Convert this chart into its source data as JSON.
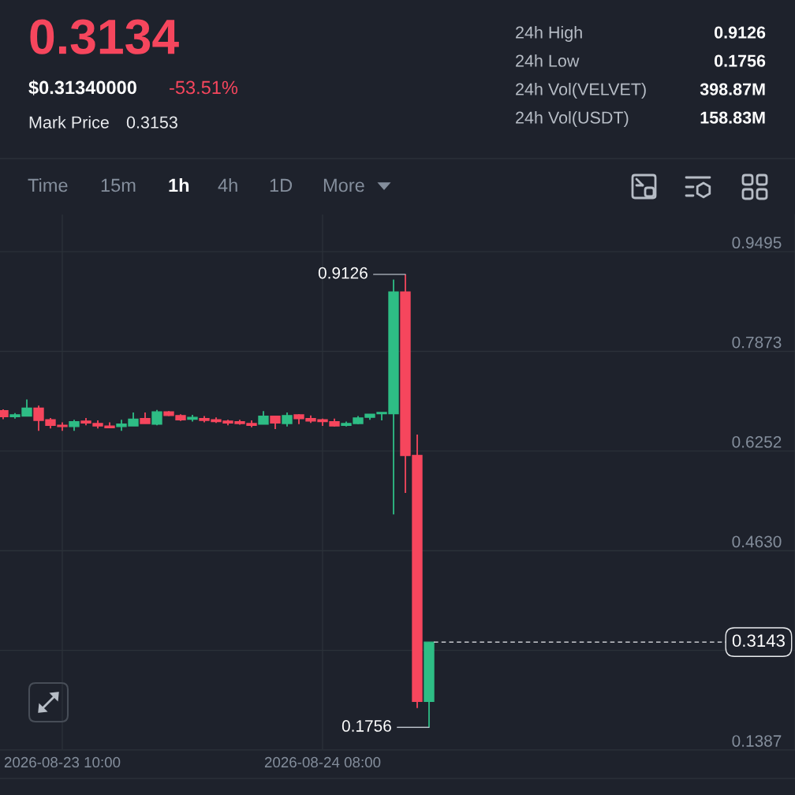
{
  "chart_data": {
    "type": "candlestick",
    "title": "0.3134",
    "annotations": [
      "$0.31340000",
      "-53.51%",
      "Mark Price",
      "0.3153",
      "24h High",
      "0.9126",
      "24h Low",
      "0.1756",
      "24h Vol(VELVET)",
      "398.87M",
      "24h Vol(USDT)",
      "158.83M",
      "Time",
      "15m",
      "1h",
      "4h",
      "1D",
      "More",
      {
        "text": "0.9126",
        "x": "2026-08-24T15:00",
        "y": 0.9126
      },
      {
        "text": "0.1756",
        "x": "2026-08-24T17:00",
        "y": 0.1756
      }
    ],
    "x": [
      "2026-08-23T05:00",
      "2026-08-23T06:00",
      "2026-08-23T07:00",
      "2026-08-23T08:00",
      "2026-08-23T09:00",
      "2026-08-23T10:00",
      "2026-08-23T11:00",
      "2026-08-23T12:00",
      "2026-08-23T13:00",
      "2026-08-23T14:00",
      "2026-08-23T15:00",
      "2026-08-23T16:00",
      "2026-08-23T17:00",
      "2026-08-23T18:00",
      "2026-08-23T19:00",
      "2026-08-23T20:00",
      "2026-08-23T21:00",
      "2026-08-23T22:00",
      "2026-08-23T23:00",
      "2026-08-24T00:00",
      "2026-08-24T01:00",
      "2026-08-24T02:00",
      "2026-08-24T03:00",
      "2026-08-24T04:00",
      "2026-08-24T05:00",
      "2026-08-24T06:00",
      "2026-08-24T07:00",
      "2026-08-24T08:00",
      "2026-08-24T09:00",
      "2026-08-24T10:00",
      "2026-08-24T11:00",
      "2026-08-24T12:00",
      "2026-08-24T13:00",
      "2026-08-24T14:00",
      "2026-08-24T15:00",
      "2026-08-24T16:00",
      "2026-08-24T17:00"
    ],
    "ohlc": [
      [
        0.691,
        0.693,
        0.677,
        0.681
      ],
      [
        0.681,
        0.687,
        0.678,
        0.684
      ],
      [
        0.682,
        0.709,
        0.682,
        0.695
      ],
      [
        0.695,
        0.699,
        0.658,
        0.675
      ],
      [
        0.676,
        0.679,
        0.662,
        0.667
      ],
      [
        0.667,
        0.672,
        0.658,
        0.665
      ],
      [
        0.665,
        0.676,
        0.658,
        0.673
      ],
      [
        0.674,
        0.679,
        0.667,
        0.671
      ],
      [
        0.67,
        0.675,
        0.662,
        0.666
      ],
      [
        0.666,
        0.672,
        0.663,
        0.663
      ],
      [
        0.665,
        0.676,
        0.658,
        0.669
      ],
      [
        0.666,
        0.688,
        0.666,
        0.677
      ],
      [
        0.678,
        0.688,
        0.67,
        0.67
      ],
      [
        0.669,
        0.692,
        0.667,
        0.689
      ],
      [
        0.689,
        0.69,
        0.682,
        0.683
      ],
      [
        0.683,
        0.685,
        0.674,
        0.676
      ],
      [
        0.677,
        0.684,
        0.673,
        0.68
      ],
      [
        0.678,
        0.682,
        0.672,
        0.675
      ],
      [
        0.676,
        0.68,
        0.671,
        0.673
      ],
      [
        0.674,
        0.676,
        0.667,
        0.671
      ],
      [
        0.673,
        0.676,
        0.668,
        0.67
      ],
      [
        0.67,
        0.675,
        0.664,
        0.667
      ],
      [
        0.669,
        0.69,
        0.669,
        0.682
      ],
      [
        0.682,
        0.682,
        0.661,
        0.671
      ],
      [
        0.67,
        0.688,
        0.665,
        0.683
      ],
      [
        0.684,
        0.685,
        0.669,
        0.678
      ],
      [
        0.678,
        0.683,
        0.671,
        0.674
      ],
      [
        0.676,
        0.678,
        0.666,
        0.673
      ],
      [
        0.673,
        0.678,
        0.665,
        0.666
      ],
      [
        0.667,
        0.673,
        0.665,
        0.67
      ],
      [
        0.67,
        0.682,
        0.669,
        0.679
      ],
      [
        0.68,
        0.685,
        0.676,
        0.685
      ],
      [
        0.686,
        0.688,
        0.675,
        0.688
      ],
      [
        0.686,
        0.904,
        0.522,
        0.884
      ],
      [
        0.884,
        0.9126,
        0.557,
        0.618
      ],
      [
        0.618,
        0.652,
        0.207,
        0.218
      ],
      [
        0.218,
        0.3143,
        0.1756,
        0.3143
      ]
    ],
    "colors": [
      "#f6465d",
      "#2ebd85",
      "#2ebd85",
      "#f6465d",
      "#f6465d",
      "#f6465d",
      "#2ebd85",
      "#f6465d",
      "#f6465d",
      "#f6465d",
      "#2ebd85",
      "#2ebd85",
      "#f6465d",
      "#2ebd85",
      "#f6465d",
      "#f6465d",
      "#2ebd85",
      "#f6465d",
      "#f6465d",
      "#f6465d",
      "#f6465d",
      "#f6465d",
      "#2ebd85",
      "#f6465d",
      "#2ebd85",
      "#f6465d",
      "#f6465d",
      "#f6465d",
      "#f6465d",
      "#2ebd85",
      "#2ebd85",
      "#2ebd85",
      "#2ebd85",
      "#2ebd85",
      "#f6465d",
      "#f6465d",
      "#2ebd85"
    ],
    "xlim": [
      "2026-08-23T04:44",
      "2026-08-25T23:56"
    ],
    "xticks": [
      {
        "value": "2026-08-23T10:00",
        "label": "2026-08-23 10:00"
      },
      {
        "value": "2026-08-24T08:00",
        "label": "2026-08-24 08:00"
      }
    ],
    "ylim": [
      0.1387,
      1.01
    ],
    "yticks": [
      0.9495,
      0.7873,
      0.6252,
      {
        "value": 0.463,
        "label": "0.4630"
      },
      {
        "value": 0.3008,
        "label": null
      },
      0.1387
    ],
    "ref_lines": [
      {
        "axis": "y",
        "value": 0.3143,
        "label": "0.3143",
        "color": "#eaecef",
        "line_style": "dashed"
      }
    ],
    "grid": true
  }
}
